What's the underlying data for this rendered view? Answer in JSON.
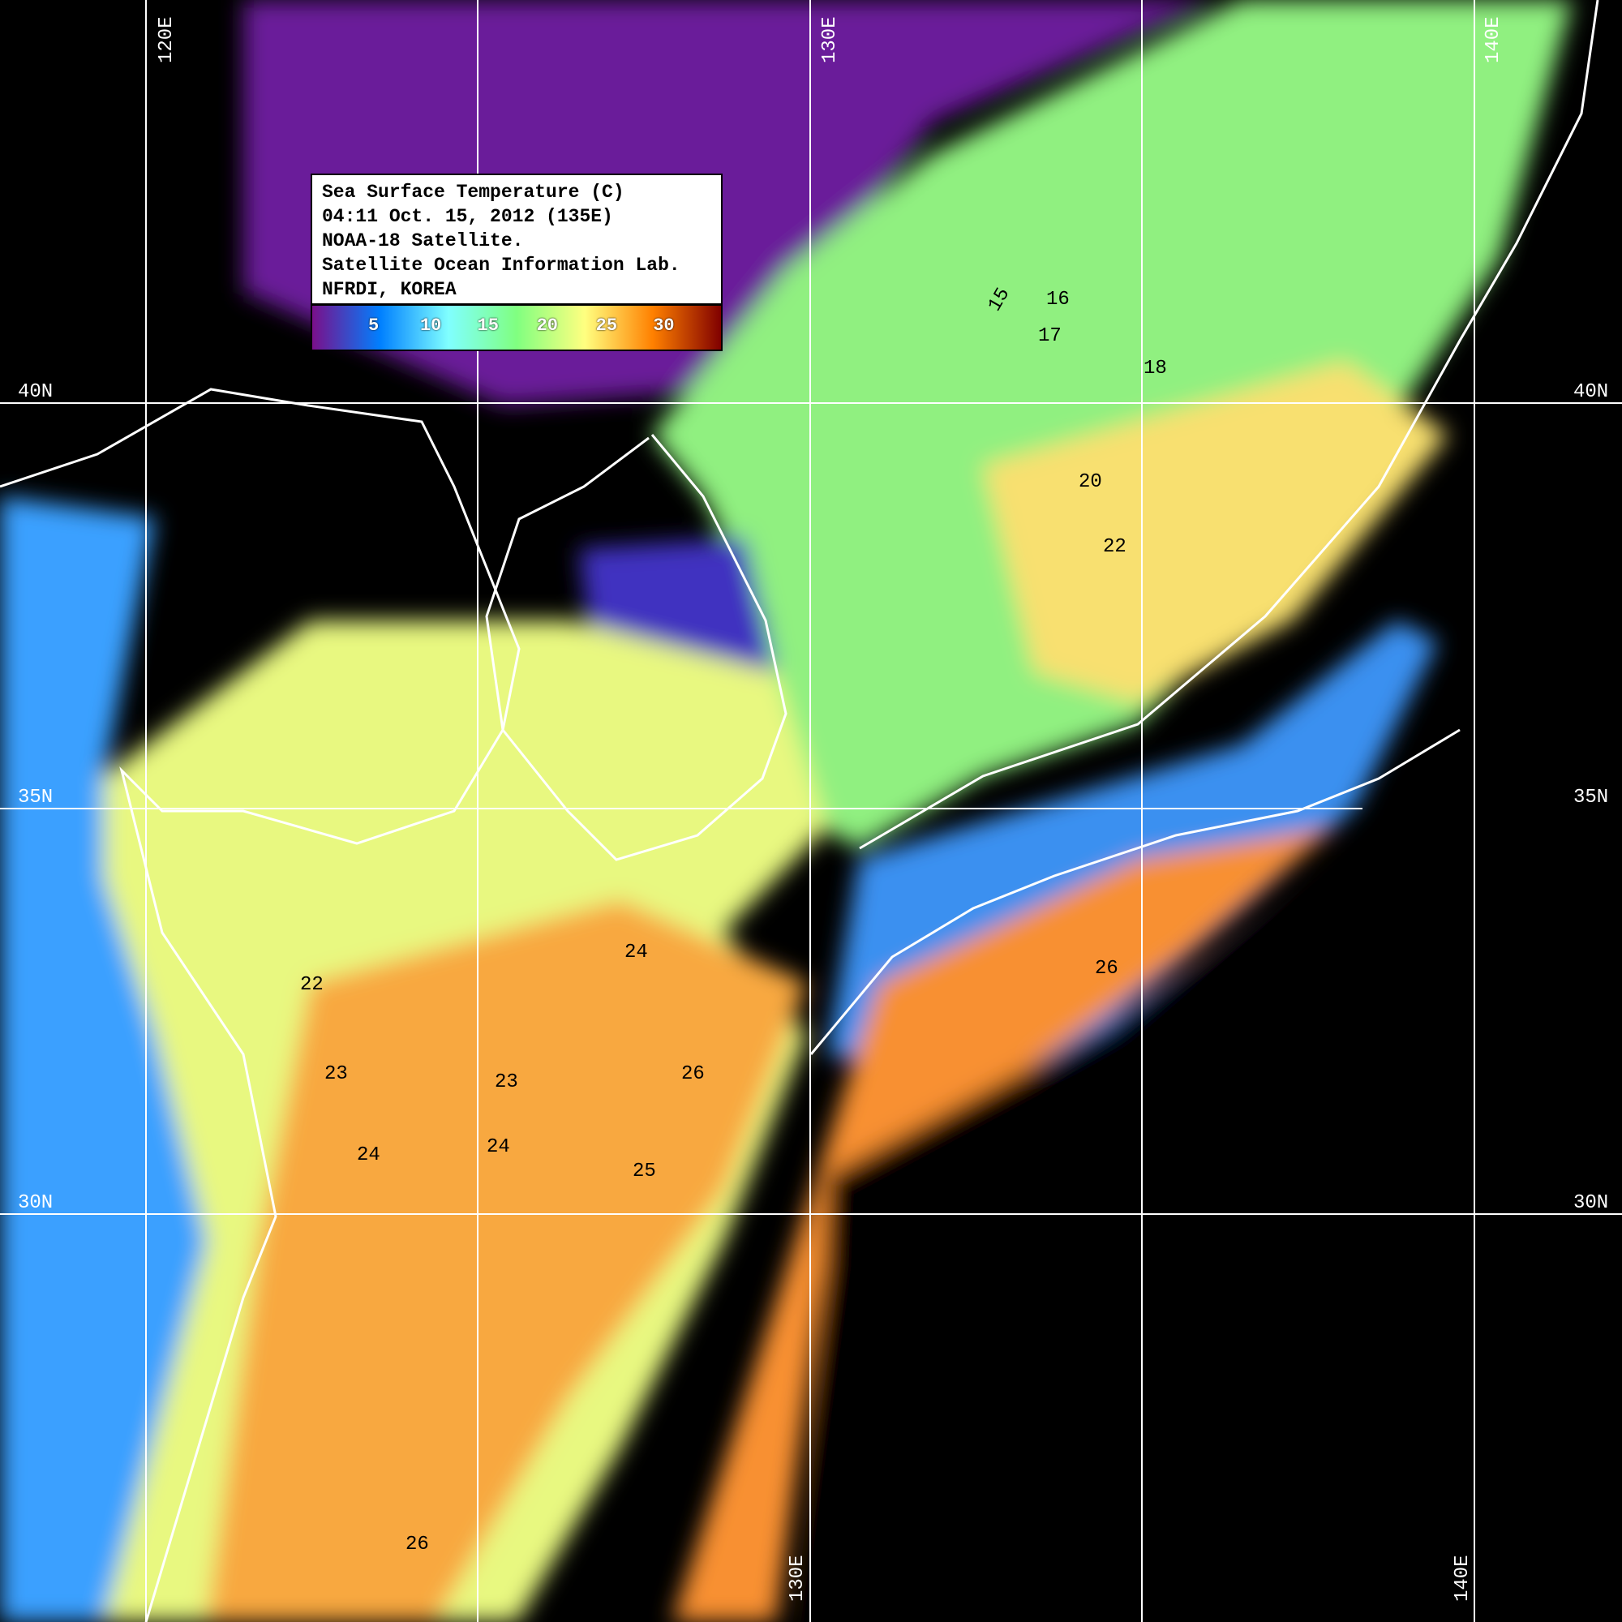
{
  "legend": {
    "lines": [
      "Sea Surface Temperature (C)",
      "04:11 Oct. 15, 2012 (135E)",
      "NOAA-18 Satellite.",
      "Satellite Ocean Information Lab.",
      "NFRDI, KOREA"
    ],
    "colorbar_ticks": [
      "5",
      "10",
      "15",
      "20",
      "25",
      "30"
    ],
    "colorbar_colors": [
      "#7a0f8a",
      "#0080ff",
      "#80ffff",
      "#80ff80",
      "#ffff80",
      "#ff8000",
      "#800000"
    ]
  },
  "grid": {
    "lon_top": [
      "120E",
      "130E",
      "140E"
    ],
    "lon_bottom": [
      "130E",
      "140E"
    ],
    "lat_left": [
      "40N",
      "35N",
      "30N"
    ],
    "lat_right": [
      "40N",
      "35N",
      "30N"
    ]
  },
  "contour_labels": [
    "15",
    "16",
    "17",
    "18",
    "20",
    "22",
    "22",
    "23",
    "23",
    "24",
    "24",
    "24",
    "25",
    "26",
    "26",
    "26"
  ]
}
